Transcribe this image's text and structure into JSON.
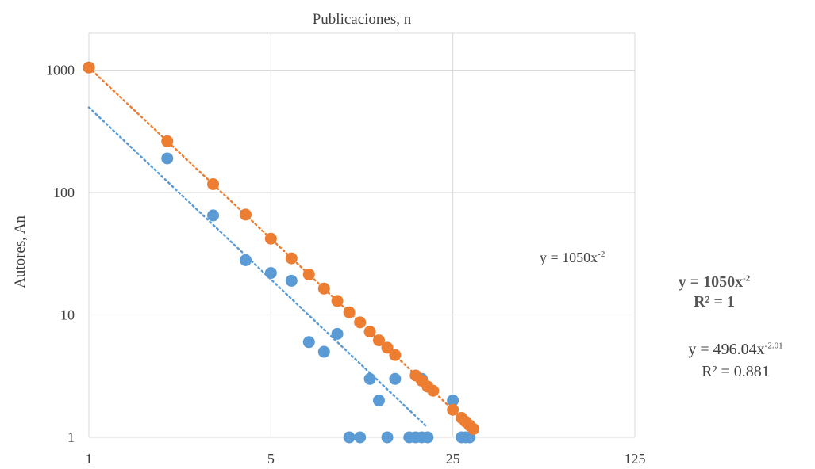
{
  "chart_data": {
    "type": "scatter",
    "title": "Publicaciones, n",
    "xlabel": "",
    "ylabel": "Autores, An",
    "x_scale": "log5",
    "y_scale": "log10",
    "xlim": [
      1,
      125
    ],
    "ylim": [
      1,
      2000
    ],
    "x_ticks": [
      1,
      5,
      25,
      125
    ],
    "x_tick_labels": [
      "1",
      "5",
      "25",
      "125"
    ],
    "y_ticks": [
      1,
      10,
      100,
      1000
    ],
    "y_tick_labels": [
      "1",
      "10",
      "100",
      "1000"
    ],
    "grid": true,
    "series": [
      {
        "color": "#5B9BD5",
        "points": [
          [
            1,
            1050
          ],
          [
            2,
            190
          ],
          [
            3,
            65
          ],
          [
            4,
            28
          ],
          [
            5,
            22
          ],
          [
            6,
            19
          ],
          [
            7,
            6
          ],
          [
            8,
            5
          ],
          [
            9,
            7
          ],
          [
            10,
            1
          ],
          [
            11,
            1
          ],
          [
            12,
            3
          ],
          [
            13,
            2
          ],
          [
            14,
            1
          ],
          [
            15,
            3
          ],
          [
            17,
            1
          ],
          [
            19,
            3
          ],
          [
            18,
            1
          ],
          [
            19,
            1
          ],
          [
            20,
            1
          ],
          [
            25,
            2
          ],
          [
            27,
            1
          ],
          [
            28,
            1
          ],
          [
            29,
            1
          ]
        ],
        "trendline": {
          "a": 496.04,
          "b": -2.01,
          "x_range": [
            1,
            20
          ],
          "equation": "y = 496.04x",
          "exponent": "-2.01",
          "r2": "R² = 0.881"
        }
      },
      {
        "color": "#ED7D31",
        "points": [
          [
            1,
            1050
          ],
          [
            2,
            262
          ],
          [
            3,
            117
          ],
          [
            4,
            66
          ],
          [
            5,
            42
          ],
          [
            6,
            29
          ],
          [
            7,
            21.4
          ],
          [
            8,
            16.4
          ],
          [
            9,
            13
          ],
          [
            10,
            10.5
          ],
          [
            11,
            8.7
          ],
          [
            12,
            7.3
          ],
          [
            13,
            6.2
          ],
          [
            14,
            5.4
          ],
          [
            15,
            4.7
          ],
          [
            18,
            3.2
          ],
          [
            19,
            2.9
          ],
          [
            20,
            2.6
          ],
          [
            21,
            2.4
          ],
          [
            25,
            1.68
          ],
          [
            27,
            1.44
          ],
          [
            28,
            1.34
          ],
          [
            29,
            1.25
          ],
          [
            30,
            1.17
          ]
        ],
        "trendline": {
          "a": 1050,
          "b": -2,
          "x_range": [
            1,
            30
          ],
          "equation": "y = 1050x",
          "exponent": "-2",
          "r2": "R² = 1"
        }
      }
    ],
    "annotations": {
      "inside_equation": "y = 1050x",
      "inside_exponent": "-2"
    }
  }
}
